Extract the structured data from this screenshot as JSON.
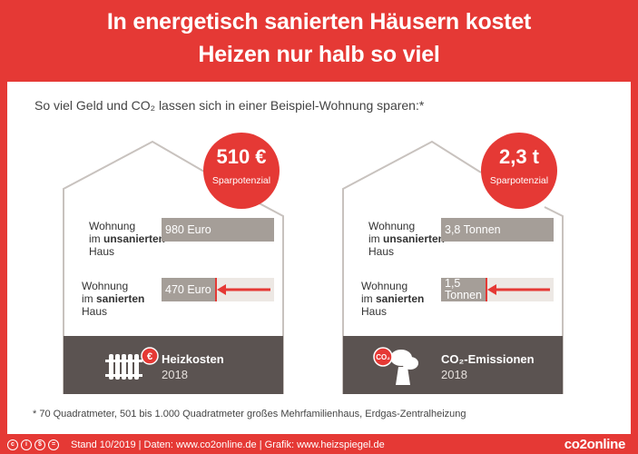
{
  "header": {
    "line1": "In energetisch sanierten Häusern kostet",
    "line2": "Heizen nur halb so viel"
  },
  "subtitle": "So viel Geld und CO₂ lassen sich in einer Beispiel-Wohnung sparen:*",
  "chart_data": [
    {
      "type": "bar",
      "badge_value": "510 €",
      "badge_label": "Sparpotenzial",
      "categories": [
        "Wohnung im unsanierten Haus",
        "Wohnung im sanierten Haus"
      ],
      "values": [
        980,
        470
      ],
      "value_labels": [
        "980 Euro",
        "470 Euro"
      ],
      "footer_title": "Heizkosten",
      "footer_year": "2018",
      "icon": "radiator-euro-icon"
    },
    {
      "type": "bar",
      "badge_value": "2,3 t",
      "badge_label": "Sparpotenzial",
      "categories": [
        "Wohnung im unsanierten Haus",
        "Wohnung im sanierten Haus"
      ],
      "values": [
        3.8,
        1.5
      ],
      "value_labels": [
        "3,8 Tonnen",
        "1,5 Tonnen"
      ],
      "footer_title": "CO₂-Emissionen",
      "footer_year": "2018",
      "icon": "co2-smoke-icon"
    }
  ],
  "row_labels": {
    "unsaniert": {
      "pre": "Wohnung",
      "mid_a": "im ",
      "mid_b": "unsanierten",
      "post": "Haus"
    },
    "saniert": {
      "pre": "Wohnung",
      "mid_a": "im ",
      "mid_b": "sanierten",
      "post": "Haus"
    }
  },
  "footnote": "* 70 Quadratmeter, 501 bis 1.000 Quadratmeter großes Mehrfamilienhaus, Erdgas-Zentralheizung",
  "bottom": {
    "meta": "Stand 10/2019   |   Daten: www.co2online.de   |   Grafik: www.heizspiegel.de",
    "logo": "co2online",
    "cc_icons": [
      "c",
      "i",
      "$",
      "="
    ]
  },
  "colors": {
    "accent": "#e53935",
    "bar": "#a59e98",
    "ghost": "#ede8e4",
    "footer": "#5b5351"
  }
}
